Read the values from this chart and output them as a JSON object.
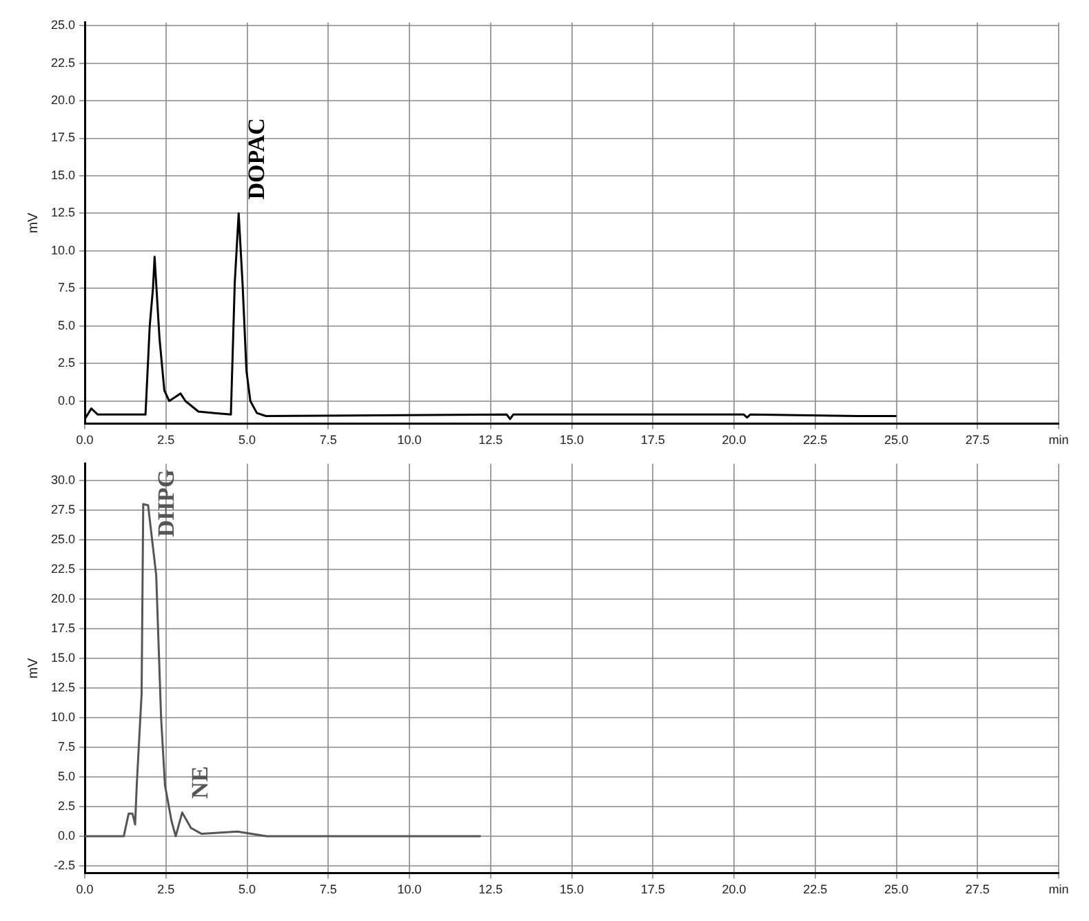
{
  "chart_data": [
    {
      "type": "line",
      "ylabel": "mV",
      "xlim": [
        0,
        30
      ],
      "ylim": [
        -1.5,
        25.2
      ],
      "xticks": [
        {
          "value": 0,
          "label": "0.0"
        },
        2.5,
        {
          "value": 5,
          "label": "5.0"
        },
        7.5,
        {
          "value": 10,
          "label": "10.0"
        },
        12.5,
        {
          "value": 15,
          "label": "15.0"
        },
        17.5,
        {
          "value": 20,
          "label": "20.0"
        },
        22.5,
        {
          "value": 25,
          "label": "25.0"
        },
        27.5,
        {
          "value": 30,
          "label": "min"
        }
      ],
      "yticks": [
        {
          "value": 0,
          "label": "0.0"
        },
        2.5,
        {
          "value": 5,
          "label": "5.0"
        },
        7.5,
        {
          "value": 10,
          "label": "10.0"
        },
        12.5,
        {
          "value": 15,
          "label": "15.0"
        },
        17.5,
        {
          "value": 20,
          "label": "20.0"
        },
        22.5,
        {
          "value": 25,
          "label": "25.0"
        }
      ],
      "grid": true,
      "marker": "none",
      "line_style": "solid",
      "series": [
        {
          "color": "#000000",
          "x": [
            0,
            0.2,
            0.4,
            1.87,
            2.0,
            2.1,
            2.15,
            2.3,
            2.45,
            2.6,
            2.95,
            3.1,
            3.5,
            4.0,
            4.5,
            4.62,
            4.74,
            4.86,
            4.98,
            5.1,
            5.3,
            5.58,
            13.0,
            13.1,
            13.2,
            20.3,
            20.4,
            20.5,
            23.8,
            25.0
          ],
          "values": [
            -1.2,
            -0.5,
            -0.9,
            -0.9,
            5.0,
            7.5,
            9.6,
            4.2,
            0.7,
            0.0,
            0.5,
            0.0,
            -0.7,
            -0.8,
            -0.9,
            7.9,
            12.5,
            7.8,
            2.0,
            0.0,
            -0.8,
            -1.0,
            -0.9,
            -1.2,
            -0.9,
            -0.9,
            -1.1,
            -0.9,
            -1.0,
            -1.0
          ]
        }
      ],
      "annotations": [
        {
          "text": "DOPAC",
          "x": 4.74,
          "y": 12.5
        }
      ]
    },
    {
      "type": "line",
      "ylabel": "mV",
      "xlim": [
        0,
        30
      ],
      "ylim": [
        -3.1,
        31.4
      ],
      "xticks": [
        {
          "value": 0,
          "label": "0.0"
        },
        2.5,
        {
          "value": 5,
          "label": "5.0"
        },
        7.5,
        {
          "value": 10,
          "label": "10.0"
        },
        12.5,
        {
          "value": 15,
          "label": "15.0"
        },
        17.5,
        {
          "value": 20,
          "label": "20.0"
        },
        22.5,
        {
          "value": 25,
          "label": "25.0"
        },
        27.5,
        {
          "value": 30,
          "label": "min"
        }
      ],
      "yticks": [
        -2.5,
        {
          "value": 0,
          "label": "0.0"
        },
        2.5,
        {
          "value": 5,
          "label": "5.0"
        },
        7.5,
        {
          "value": 10,
          "label": "10.0"
        },
        12.5,
        {
          "value": 15,
          "label": "15.0"
        },
        17.5,
        {
          "value": 20,
          "label": "20.0"
        },
        22.5,
        {
          "value": 25,
          "label": "25.0"
        },
        27.5,
        {
          "value": 30,
          "label": "30.0"
        }
      ],
      "grid": true,
      "marker": "none",
      "line_style": "solid",
      "series": [
        {
          "color": "#555555",
          "x": [
            0,
            1.2,
            1.35,
            1.47,
            1.55,
            1.6,
            1.75,
            1.8,
            1.95,
            2.2,
            2.35,
            2.47,
            2.67,
            2.8,
            3.0,
            3.27,
            3.6,
            4.7,
            5.6,
            12.2
          ],
          "values": [
            0,
            0,
            1.9,
            1.9,
            1.0,
            4.3,
            12.0,
            28.0,
            27.9,
            22.0,
            10.0,
            4.3,
            1.3,
            0.0,
            2.0,
            0.7,
            0.2,
            0.4,
            0.0,
            0.0
          ]
        }
      ],
      "annotations": [
        {
          "text": "DHPG",
          "x": 1.95,
          "y": 27.9
        },
        {
          "text": "NE",
          "x": 3.0,
          "y": 2.0
        }
      ]
    }
  ]
}
